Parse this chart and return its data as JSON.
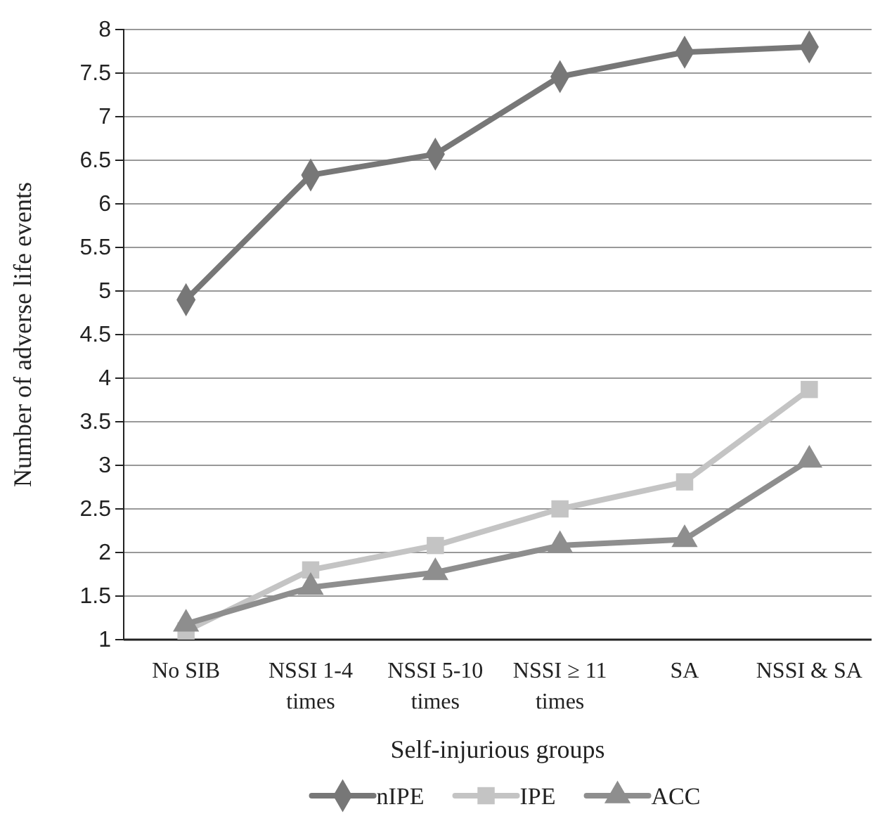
{
  "chart_data": {
    "type": "line",
    "xlabel": "Self-injurious groups",
    "ylabel": "Number of adverse life events",
    "categories": [
      "No SIB",
      "NSSI 1-4 times",
      "NSSI 5-10 times",
      "NSSI ≥ 11 times",
      "SA",
      "NSSI & SA"
    ],
    "series": [
      {
        "name": "nIPE",
        "color": "#777777",
        "marker": "diamond",
        "values": [
          4.9,
          6.33,
          6.57,
          7.46,
          7.74,
          7.8
        ]
      },
      {
        "name": "IPE",
        "color": "#c4c4c4",
        "marker": "square",
        "values": [
          1.1,
          1.8,
          2.08,
          2.5,
          2.81,
          3.87
        ]
      },
      {
        "name": "ACC",
        "color": "#8e8e8e",
        "marker": "triangle",
        "values": [
          1.18,
          1.6,
          1.77,
          2.08,
          2.15,
          3.06
        ]
      }
    ],
    "ylim": [
      1,
      8
    ],
    "yticks": [
      1,
      1.5,
      2,
      2.5,
      3,
      3.5,
      4,
      4.5,
      5,
      5.5,
      6,
      6.5,
      7,
      7.5,
      8
    ],
    "grid": "y",
    "legend": "bottom"
  }
}
